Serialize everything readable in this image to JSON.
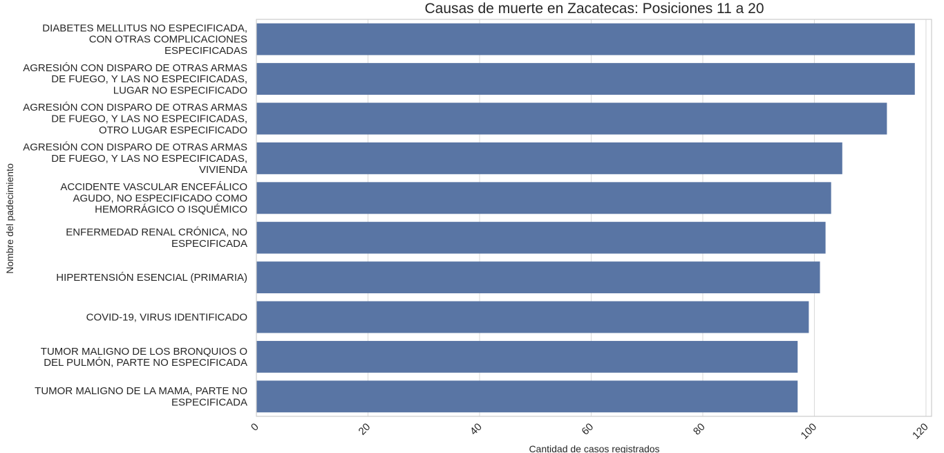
{
  "chart_data": {
    "type": "bar",
    "orientation": "horizontal",
    "title": "Causas de muerte en Zacatecas: Posiciones 11 a 20",
    "xlabel": "Cantidad de casos registrados",
    "ylabel": "Nombre del padecimiento",
    "xlim": [
      0,
      121
    ],
    "xticks": [
      0,
      20,
      40,
      60,
      80,
      100,
      120
    ],
    "grid": true,
    "bar_color": "#5975a4",
    "categories": [
      [
        "DIABETES MELLITUS NO ESPECIFICADA,",
        "CON OTRAS COMPLICACIONES",
        "ESPECIFICADAS"
      ],
      [
        "AGRESIÓN CON DISPARO DE OTRAS ARMAS",
        "DE FUEGO, Y LAS NO ESPECIFICADAS,",
        "LUGAR NO ESPECIFICADO"
      ],
      [
        "AGRESIÓN CON DISPARO DE OTRAS ARMAS",
        "DE FUEGO, Y LAS NO ESPECIFICADAS,",
        "OTRO LUGAR ESPECIFICADO"
      ],
      [
        "AGRESIÓN CON DISPARO DE OTRAS ARMAS",
        "DE FUEGO, Y LAS NO ESPECIFICADAS,",
        "VIVIENDA"
      ],
      [
        "ACCIDENTE VASCULAR ENCEFÁLICO",
        "AGUDO, NO ESPECIFICADO COMO",
        "HEMORRÁGICO O ISQUÉMICO"
      ],
      [
        "ENFERMEDAD RENAL CRÓNICA, NO",
        "ESPECIFICADA"
      ],
      [
        "HIPERTENSIÓN ESENCIAL (PRIMARIA)"
      ],
      [
        "COVID-19, VIRUS IDENTIFICADO"
      ],
      [
        "TUMOR MALIGNO DE LOS BRONQUIOS O",
        "DEL PULMÓN, PARTE NO ESPECIFICADA"
      ],
      [
        "TUMOR MALIGNO DE LA MAMA, PARTE NO",
        "ESPECIFICADA"
      ]
    ],
    "values": [
      118,
      118,
      113,
      105,
      103,
      102,
      101,
      99,
      97,
      97
    ]
  }
}
